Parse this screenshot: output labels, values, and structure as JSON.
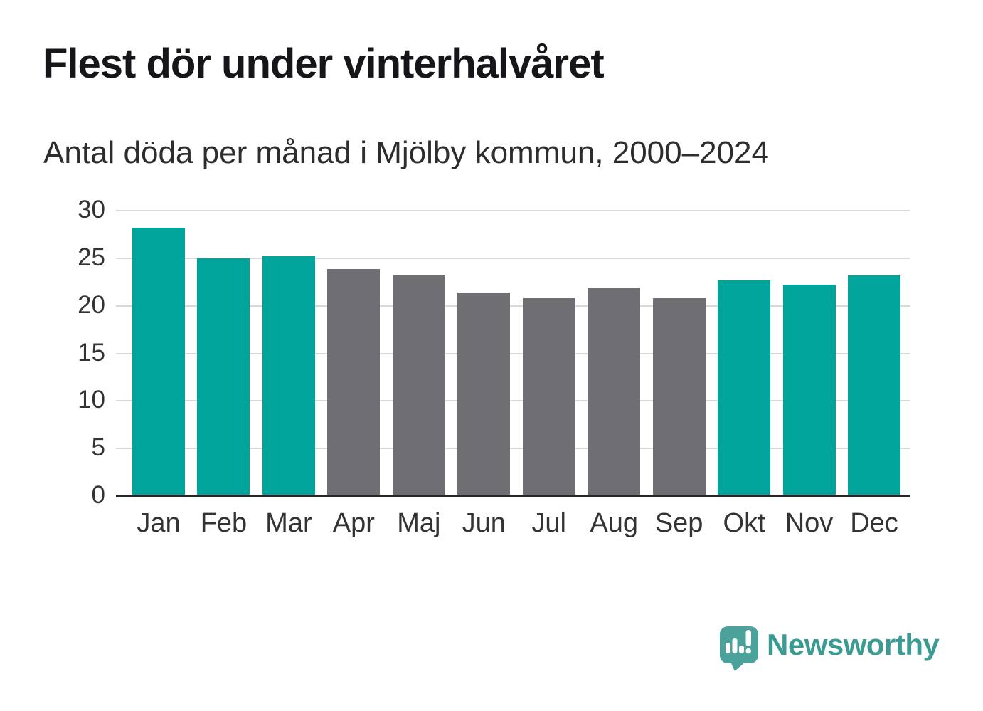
{
  "title": "Flest dör under vinterhalvåret",
  "subtitle": "Antal döda per månad i Mjölby kommun, 2000–2024",
  "branding": {
    "logo_text": "Newsworthy"
  },
  "colors": {
    "winter_bar": "#00a49b",
    "summer_bar": "#6e6e73",
    "gridline": "#d9d9d9",
    "axis_line": "#262626",
    "logo_badge": "#4ba29b",
    "logo_text": "#3a9b93"
  },
  "chart_data": {
    "type": "bar",
    "title": "Flest dör under vinterhalvåret",
    "subtitle": "Antal döda per månad i Mjölby kommun, 2000–2024",
    "categories": [
      "Jan",
      "Feb",
      "Mar",
      "Apr",
      "Maj",
      "Jun",
      "Jul",
      "Aug",
      "Sep",
      "Okt",
      "Nov",
      "Dec"
    ],
    "values": [
      28.2,
      25.0,
      25.2,
      23.9,
      23.3,
      21.4,
      20.8,
      21.9,
      20.8,
      22.7,
      22.2,
      23.2
    ],
    "bar_groups": [
      "winter",
      "winter",
      "winter",
      "summer",
      "summer",
      "summer",
      "summer",
      "summer",
      "summer",
      "winter",
      "winter",
      "winter"
    ],
    "group_colors": {
      "winter": "#00a49b",
      "summer": "#6e6e73"
    },
    "xlabel": "",
    "ylabel": "",
    "ylim": [
      0,
      30
    ],
    "yticks": [
      0,
      5,
      10,
      15,
      20,
      25,
      30
    ],
    "grid": true,
    "legend": "none"
  }
}
